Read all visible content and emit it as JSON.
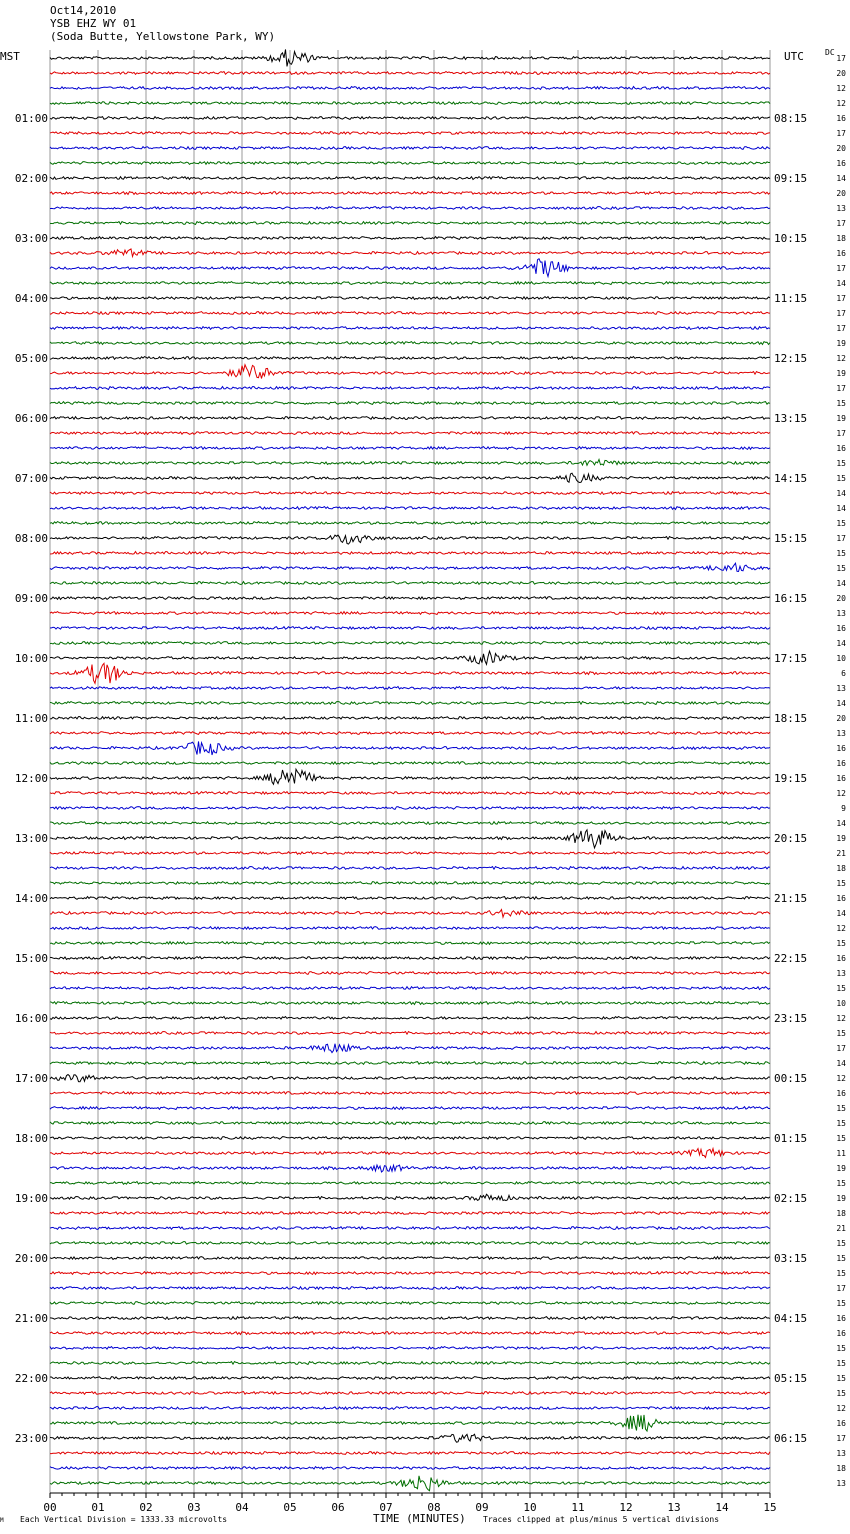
{
  "header": {
    "date": "Oct14,2010",
    "station": "YSB EHZ WY 01",
    "location": "(Soda Butte, Yellowstone Park, WY)"
  },
  "left_tz": "MST",
  "right_tz": "UTC",
  "dc_label": "DC",
  "footer": {
    "marker": "M",
    "vertical_division": "Each Vertical Division = 1333.33 microvolts",
    "axis_title": "TIME (MINUTES)",
    "clip_note": "Traces clipped at plus/minus 5 vertical divisions"
  },
  "colors": {
    "trace_cycle": [
      "#000000",
      "#e00000",
      "#0000d0",
      "#006e00"
    ],
    "grid": "#9a9a9a"
  },
  "chart_data": {
    "type": "line",
    "title": "YSB EHZ WY 01",
    "xlabel": "TIME (MINUTES)",
    "xlim": [
      0,
      15
    ],
    "x_ticks": [
      "00",
      "01",
      "02",
      "03",
      "04",
      "05",
      "06",
      "07",
      "08",
      "09",
      "10",
      "11",
      "12",
      "13",
      "14",
      "15"
    ],
    "rows_per_hour": 4,
    "minutes_per_row": 15,
    "left_labels": [
      "01:00",
      "02:00",
      "03:00",
      "04:00",
      "05:00",
      "06:00",
      "07:00",
      "08:00",
      "09:00",
      "10:00",
      "11:00",
      "12:00",
      "13:00",
      "14:00",
      "15:00",
      "16:00",
      "17:00",
      "18:00",
      "19:00",
      "20:00",
      "21:00",
      "22:00",
      "23:00"
    ],
    "right_labels": [
      "08:15",
      "09:15",
      "10:15",
      "11:15",
      "12:15",
      "13:15",
      "14:15",
      "15:15",
      "16:15",
      "17:15",
      "18:15",
      "19:15",
      "20:15",
      "21:15",
      "22:15",
      "23:15",
      "00:15",
      "01:15",
      "02:15",
      "03:15",
      "04:15",
      "05:15",
      "06:15"
    ],
    "dc_offsets": [
      17,
      20,
      12,
      12,
      16,
      17,
      20,
      16,
      14,
      20,
      13,
      17,
      18,
      16,
      17,
      14,
      17,
      17,
      17,
      19,
      12,
      19,
      17,
      15,
      19,
      17,
      16,
      15,
      15,
      14,
      14,
      15,
      17,
      15,
      15,
      14,
      20,
      13,
      16,
      14,
      10,
      6,
      13,
      14,
      20,
      13,
      16,
      16,
      16,
      12,
      9,
      14,
      19,
      21,
      18,
      15,
      16,
      14,
      12,
      15,
      16,
      13,
      15,
      10,
      12,
      15,
      17,
      14,
      12,
      16,
      15,
      15,
      15,
      11,
      19,
      15,
      19,
      18,
      21,
      15,
      15,
      15,
      17,
      15,
      16,
      16,
      15,
      15,
      15,
      15,
      12,
      16,
      17,
      13,
      18,
      13
    ],
    "events": [
      {
        "row": 0,
        "minute": 5.0,
        "amplitude": 8
      },
      {
        "row": 13,
        "minute": 1.6,
        "amplitude": 3
      },
      {
        "row": 14,
        "minute": 10.3,
        "amplitude": 9
      },
      {
        "row": 21,
        "minute": 4.2,
        "amplitude": 8
      },
      {
        "row": 27,
        "minute": 11.4,
        "amplitude": 3
      },
      {
        "row": 28,
        "minute": 11.0,
        "amplitude": 4
      },
      {
        "row": 32,
        "minute": 6.3,
        "amplitude": 6
      },
      {
        "row": 34,
        "minute": 14.2,
        "amplitude": 4
      },
      {
        "row": 40,
        "minute": 9.1,
        "amplitude": 6
      },
      {
        "row": 41,
        "minute": 1.1,
        "amplitude": 11
      },
      {
        "row": 46,
        "minute": 3.2,
        "amplitude": 7
      },
      {
        "row": 48,
        "minute": 5.0,
        "amplitude": 12
      },
      {
        "row": 52,
        "minute": 11.3,
        "amplitude": 10
      },
      {
        "row": 57,
        "minute": 9.5,
        "amplitude": 3
      },
      {
        "row": 66,
        "minute": 5.9,
        "amplitude": 4
      },
      {
        "row": 68,
        "minute": 0.6,
        "amplitude": 3
      },
      {
        "row": 73,
        "minute": 13.7,
        "amplitude": 4
      },
      {
        "row": 74,
        "minute": 7.0,
        "amplitude": 3
      },
      {
        "row": 76,
        "minute": 9.2,
        "amplitude": 3
      },
      {
        "row": 91,
        "minute": 12.3,
        "amplitude": 8
      },
      {
        "row": 92,
        "minute": 8.6,
        "amplitude": 4
      },
      {
        "row": 95,
        "minute": 7.75,
        "amplitude": 8
      }
    ]
  }
}
